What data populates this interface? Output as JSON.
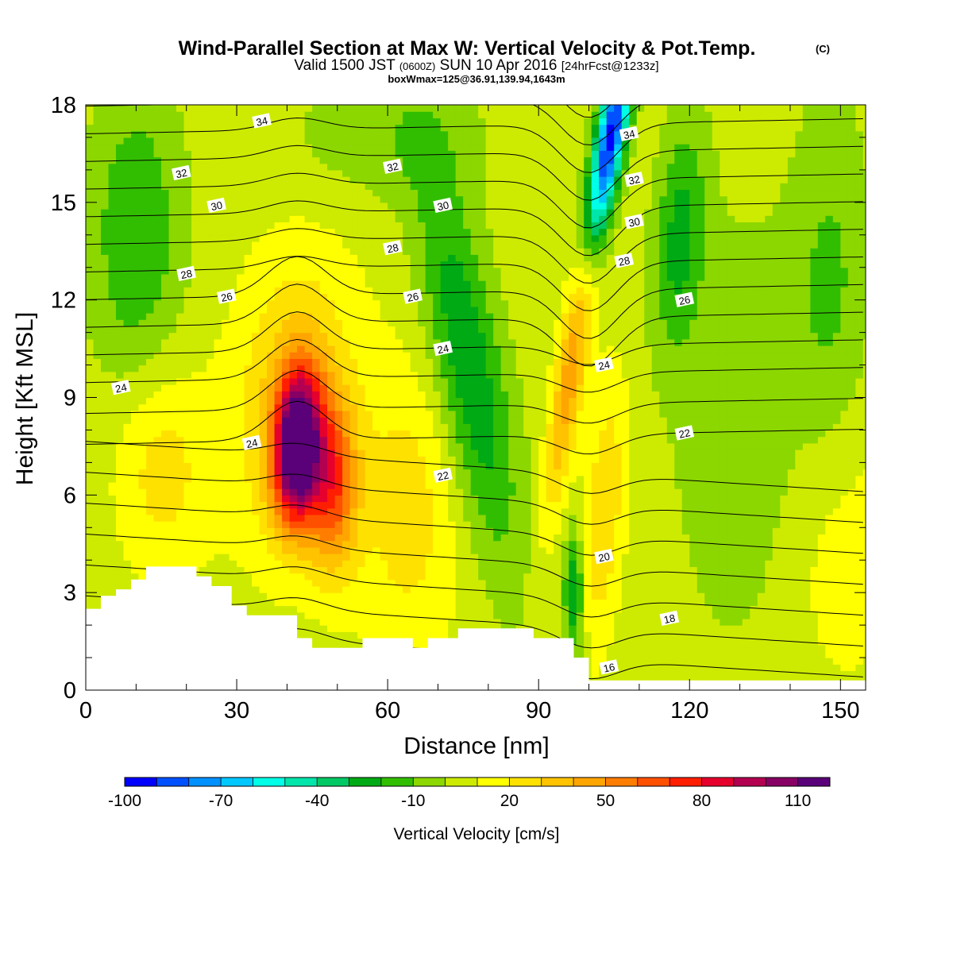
{
  "chart_data": {
    "type": "heatmap",
    "title": "Wind-Parallel Section at Max W: Vertical Velocity & Pot.Temp.",
    "title_mark": "(C)",
    "subtitle": {
      "valid_prefix": "Valid 1500 JST",
      "utc": "(0600Z)",
      "date": "SUN 10 Apr 2016",
      "forecast": "[24hrFcst@1233z]"
    },
    "info_line": "boxWmax=125@36.91,139.94,1643m",
    "xlabel": "Distance [nm]",
    "ylabel": "Height [Kft MSL]",
    "xlim": [
      0,
      155
    ],
    "ylim": [
      0,
      18
    ],
    "x_ticks": [
      "0",
      "30",
      "60",
      "90",
      "120",
      "150"
    ],
    "y_ticks": [
      "0",
      "3",
      "6",
      "9",
      "12",
      "15",
      "18"
    ],
    "colorbar": {
      "label": "Vertical Velocity [cm/s]",
      "levels": [
        -100,
        -90,
        -80,
        -70,
        -60,
        -50,
        -40,
        -30,
        -20,
        -10,
        0,
        10,
        20,
        30,
        40,
        50,
        60,
        70,
        80,
        90,
        100,
        110,
        120
      ],
      "tick_labels": [
        "-100",
        "-70",
        "-40",
        "-10",
        "20",
        "50",
        "80",
        "110"
      ],
      "colors": [
        "#0000ff",
        "#0050ff",
        "#0091ff",
        "#00c8ff",
        "#00ffe6",
        "#00e6aa",
        "#00c864",
        "#00aa14",
        "#32be00",
        "#8cd700",
        "#cdeb00",
        "#ffff00",
        "#ffe100",
        "#ffc300",
        "#ffa500",
        "#ff7d00",
        "#ff5000",
        "#ff1e00",
        "#e6002d",
        "#b40050",
        "#870064",
        "#5a0078"
      ]
    },
    "vertical_velocity_features": [
      {
        "x": 42,
        "z": 7.5,
        "w": 115,
        "note": "max updraft"
      },
      {
        "x": 50,
        "z": 6.5,
        "w": 70
      },
      {
        "x": 97,
        "z": 10.5,
        "w": 45
      },
      {
        "x": 104,
        "z": 16.5,
        "w": -90,
        "note": "max downdraft"
      },
      {
        "x": 75,
        "z": 10,
        "w": -30
      },
      {
        "x": 97,
        "z": 3,
        "w": -30
      },
      {
        "x": 15,
        "z": 7,
        "w": 20
      },
      {
        "x": 10,
        "z": 14,
        "w": -20
      },
      {
        "x": 118,
        "z": 14,
        "w": -25
      }
    ],
    "theta_contour_labels": [
      {
        "value": "34",
        "x": 35,
        "z": 17.5
      },
      {
        "value": "32",
        "x": 19,
        "z": 15.9
      },
      {
        "value": "30",
        "x": 26,
        "z": 14.9
      },
      {
        "value": "28",
        "x": 20,
        "z": 12.8
      },
      {
        "value": "26",
        "x": 28,
        "z": 12.1
      },
      {
        "value": "24",
        "x": 7,
        "z": 9.3
      },
      {
        "value": "24",
        "x": 33,
        "z": 7.6
      },
      {
        "value": "32",
        "x": 61,
        "z": 16.1
      },
      {
        "value": "28",
        "x": 61,
        "z": 13.6
      },
      {
        "value": "26",
        "x": 65,
        "z": 12.1
      },
      {
        "value": "30",
        "x": 71,
        "z": 14.9
      },
      {
        "value": "24",
        "x": 71,
        "z": 10.5
      },
      {
        "value": "22",
        "x": 71,
        "z": 6.6
      },
      {
        "value": "34",
        "x": 108,
        "z": 17.1
      },
      {
        "value": "32",
        "x": 109,
        "z": 15.7
      },
      {
        "value": "30",
        "x": 109,
        "z": 14.4
      },
      {
        "value": "28",
        "x": 107,
        "z": 13.2
      },
      {
        "value": "26",
        "x": 119,
        "z": 12.0
      },
      {
        "value": "24",
        "x": 103,
        "z": 10.0
      },
      {
        "value": "22",
        "x": 119,
        "z": 7.9
      },
      {
        "value": "20",
        "x": 103,
        "z": 4.1
      },
      {
        "value": "18",
        "x": 116,
        "z": 2.2
      },
      {
        "value": "16",
        "x": 104,
        "z": 0.7
      }
    ],
    "terrain_profile": [
      [
        0,
        2.5
      ],
      [
        3,
        2.5
      ],
      [
        3,
        2.9
      ],
      [
        6,
        2.9
      ],
      [
        6,
        3.1
      ],
      [
        9,
        3.1
      ],
      [
        9,
        3.4
      ],
      [
        12,
        3.4
      ],
      [
        12,
        3.8
      ],
      [
        22,
        3.8
      ],
      [
        22,
        3.5
      ],
      [
        25,
        3.5
      ],
      [
        25,
        3.2
      ],
      [
        29,
        3.2
      ],
      [
        29,
        2.6
      ],
      [
        32,
        2.6
      ],
      [
        32,
        2.3
      ],
      [
        42,
        2.3
      ],
      [
        42,
        1.6
      ],
      [
        45,
        1.6
      ],
      [
        45,
        1.3
      ],
      [
        55,
        1.3
      ],
      [
        55,
        1.6
      ],
      [
        65,
        1.6
      ],
      [
        65,
        1.3
      ],
      [
        68,
        1.3
      ],
      [
        68,
        1.6
      ],
      [
        74,
        1.6
      ],
      [
        74,
        1.9
      ],
      [
        89,
        1.9
      ],
      [
        89,
        1.6
      ],
      [
        97,
        1.6
      ],
      [
        97,
        1.0
      ],
      [
        100,
        1.0
      ],
      [
        100,
        0.3
      ],
      [
        155,
        0.3
      ]
    ]
  }
}
